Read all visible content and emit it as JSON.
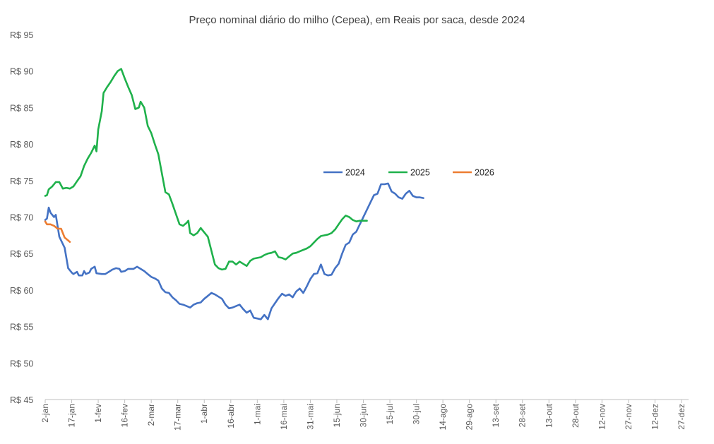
{
  "chart_data": {
    "type": "line",
    "title": "Preço nominal diário do milho (Cepea), em Reais por saca, desde 2024",
    "xlabel": "",
    "ylabel": "",
    "ylim": [
      45,
      95
    ],
    "y_ticks": [
      95,
      90,
      85,
      80,
      75,
      70,
      65,
      60,
      55,
      50,
      45
    ],
    "y_tick_labels": [
      "R$ 95",
      "R$ 90",
      "R$ 85",
      "R$ 80",
      "R$ 75",
      "R$ 70",
      "R$ 65",
      "R$ 60",
      "R$ 55",
      "R$ 50",
      "R$ 45"
    ],
    "x_day_range": [
      2,
      366
    ],
    "x_ticks": [
      2,
      17,
      32,
      47,
      62,
      77,
      92,
      107,
      122,
      137,
      152,
      167,
      182,
      197,
      212,
      227,
      242,
      257,
      272,
      287,
      302,
      317,
      332,
      347,
      362
    ],
    "x_tick_labels": [
      "2-jan",
      "17-jan",
      "1-fev",
      "16-fev",
      "2-mar",
      "17-mar",
      "1-abr",
      "16-abr",
      "1-mai",
      "16-mai",
      "31-mai",
      "15-jun",
      "30-jun",
      "15-jul",
      "30-jul",
      "14-ago",
      "29-ago",
      "13-set",
      "28-set",
      "13-out",
      "28-out",
      "12-nov",
      "27-nov",
      "12-dez",
      "27-dez"
    ],
    "grid": false,
    "legend_position": "center-right",
    "series": [
      {
        "name": "2024",
        "color": "#4472C4",
        "points": [
          [
            2,
            69.6
          ],
          [
            3,
            69.8
          ],
          [
            4,
            71.3
          ],
          [
            5,
            70.6
          ],
          [
            7,
            70.0
          ],
          [
            8,
            70.3
          ],
          [
            10,
            67.3
          ],
          [
            13,
            65.8
          ],
          [
            15,
            63.0
          ],
          [
            17,
            62.4
          ],
          [
            18,
            62.2
          ],
          [
            20,
            62.5
          ],
          [
            21,
            62.0
          ],
          [
            23,
            62.0
          ],
          [
            24,
            62.6
          ],
          [
            25,
            62.2
          ],
          [
            27,
            62.4
          ],
          [
            28,
            62.9
          ],
          [
            30,
            63.2
          ],
          [
            31,
            62.3
          ],
          [
            34,
            62.2
          ],
          [
            36,
            62.2
          ],
          [
            38,
            62.5
          ],
          [
            40,
            62.8
          ],
          [
            42,
            63.0
          ],
          [
            44,
            62.9
          ],
          [
            45,
            62.5
          ],
          [
            47,
            62.6
          ],
          [
            49,
            62.9
          ],
          [
            52,
            62.9
          ],
          [
            54,
            63.2
          ],
          [
            56,
            62.9
          ],
          [
            58,
            62.6
          ],
          [
            60,
            62.2
          ],
          [
            62,
            61.8
          ],
          [
            64,
            61.6
          ],
          [
            66,
            61.3
          ],
          [
            68,
            60.2
          ],
          [
            70,
            59.7
          ],
          [
            72,
            59.6
          ],
          [
            74,
            59.0
          ],
          [
            76,
            58.6
          ],
          [
            78,
            58.1
          ],
          [
            80,
            58.0
          ],
          [
            82,
            57.8
          ],
          [
            84,
            57.6
          ],
          [
            86,
            58.0
          ],
          [
            88,
            58.2
          ],
          [
            90,
            58.3
          ],
          [
            92,
            58.8
          ],
          [
            94,
            59.2
          ],
          [
            96,
            59.6
          ],
          [
            98,
            59.4
          ],
          [
            100,
            59.1
          ],
          [
            102,
            58.8
          ],
          [
            104,
            58.0
          ],
          [
            106,
            57.5
          ],
          [
            108,
            57.6
          ],
          [
            110,
            57.8
          ],
          [
            112,
            58.0
          ],
          [
            114,
            57.4
          ],
          [
            116,
            56.9
          ],
          [
            118,
            57.2
          ],
          [
            120,
            56.2
          ],
          [
            122,
            56.1
          ],
          [
            124,
            56.0
          ],
          [
            126,
            56.6
          ],
          [
            128,
            56.0
          ],
          [
            130,
            57.5
          ],
          [
            132,
            58.2
          ],
          [
            134,
            58.9
          ],
          [
            136,
            59.5
          ],
          [
            138,
            59.2
          ],
          [
            140,
            59.4
          ],
          [
            142,
            59.0
          ],
          [
            144,
            59.8
          ],
          [
            146,
            60.2
          ],
          [
            148,
            59.6
          ],
          [
            150,
            60.5
          ],
          [
            152,
            61.5
          ],
          [
            154,
            62.2
          ],
          [
            156,
            62.3
          ],
          [
            158,
            63.5
          ],
          [
            160,
            62.2
          ],
          [
            162,
            62.0
          ],
          [
            164,
            62.1
          ],
          [
            166,
            63.0
          ],
          [
            168,
            63.6
          ],
          [
            170,
            65.0
          ],
          [
            172,
            66.2
          ],
          [
            174,
            66.5
          ],
          [
            176,
            67.6
          ],
          [
            178,
            68.0
          ],
          [
            180,
            69.0
          ],
          [
            182,
            70.0
          ],
          [
            184,
            71.0
          ],
          [
            186,
            72.0
          ],
          [
            188,
            73.0
          ],
          [
            190,
            73.2
          ],
          [
            192,
            74.5
          ],
          [
            194,
            74.5
          ],
          [
            196,
            74.6
          ],
          [
            198,
            73.5
          ],
          [
            200,
            73.2
          ],
          [
            202,
            72.7
          ],
          [
            204,
            72.5
          ],
          [
            206,
            73.2
          ],
          [
            208,
            73.6
          ],
          [
            210,
            72.9
          ],
          [
            212,
            72.7
          ],
          [
            214,
            72.7
          ],
          [
            216,
            72.6
          ]
        ]
      },
      {
        "name": "2025",
        "color": "#1FB14B",
        "points": [
          [
            2,
            72.9
          ],
          [
            3,
            73.0
          ],
          [
            4,
            73.8
          ],
          [
            6,
            74.2
          ],
          [
            8,
            74.8
          ],
          [
            10,
            74.8
          ],
          [
            12,
            73.9
          ],
          [
            14,
            74.0
          ],
          [
            16,
            73.9
          ],
          [
            18,
            74.2
          ],
          [
            20,
            74.9
          ],
          [
            22,
            75.6
          ],
          [
            24,
            77.0
          ],
          [
            26,
            78.0
          ],
          [
            28,
            78.8
          ],
          [
            30,
            79.8
          ],
          [
            31,
            79.0
          ],
          [
            32,
            82.0
          ],
          [
            34,
            84.5
          ],
          [
            35,
            87.0
          ],
          [
            37,
            87.8
          ],
          [
            39,
            88.5
          ],
          [
            41,
            89.3
          ],
          [
            43,
            90.0
          ],
          [
            45,
            90.3
          ],
          [
            47,
            89.0
          ],
          [
            49,
            87.8
          ],
          [
            51,
            86.7
          ],
          [
            53,
            84.8
          ],
          [
            55,
            85.0
          ],
          [
            56,
            85.8
          ],
          [
            58,
            85.0
          ],
          [
            60,
            82.5
          ],
          [
            62,
            81.5
          ],
          [
            64,
            80.0
          ],
          [
            66,
            78.6
          ],
          [
            68,
            76.0
          ],
          [
            70,
            73.4
          ],
          [
            72,
            73.1
          ],
          [
            74,
            71.8
          ],
          [
            76,
            70.4
          ],
          [
            78,
            69.0
          ],
          [
            80,
            68.8
          ],
          [
            82,
            69.2
          ],
          [
            83,
            69.5
          ],
          [
            84,
            67.8
          ],
          [
            86,
            67.5
          ],
          [
            88,
            67.8
          ],
          [
            90,
            68.5
          ],
          [
            92,
            67.9
          ],
          [
            94,
            67.3
          ],
          [
            96,
            65.4
          ],
          [
            98,
            63.5
          ],
          [
            100,
            63.0
          ],
          [
            102,
            62.8
          ],
          [
            104,
            62.9
          ],
          [
            106,
            63.9
          ],
          [
            108,
            63.9
          ],
          [
            110,
            63.5
          ],
          [
            112,
            63.9
          ],
          [
            114,
            63.6
          ],
          [
            116,
            63.3
          ],
          [
            118,
            64.0
          ],
          [
            120,
            64.3
          ],
          [
            122,
            64.4
          ],
          [
            124,
            64.5
          ],
          [
            126,
            64.8
          ],
          [
            128,
            65.0
          ],
          [
            130,
            65.1
          ],
          [
            132,
            65.3
          ],
          [
            134,
            64.5
          ],
          [
            136,
            64.4
          ],
          [
            138,
            64.2
          ],
          [
            140,
            64.6
          ],
          [
            142,
            65.0
          ],
          [
            144,
            65.1
          ],
          [
            146,
            65.3
          ],
          [
            148,
            65.5
          ],
          [
            150,
            65.7
          ],
          [
            152,
            66.0
          ],
          [
            154,
            66.5
          ],
          [
            156,
            67.0
          ],
          [
            158,
            67.4
          ],
          [
            160,
            67.5
          ],
          [
            162,
            67.6
          ],
          [
            164,
            67.8
          ],
          [
            166,
            68.3
          ],
          [
            168,
            69.0
          ],
          [
            170,
            69.7
          ],
          [
            172,
            70.2
          ],
          [
            174,
            70.0
          ],
          [
            176,
            69.6
          ],
          [
            178,
            69.4
          ],
          [
            180,
            69.5
          ],
          [
            182,
            69.5
          ],
          [
            184,
            69.5
          ]
        ]
      },
      {
        "name": "2026",
        "color": "#ED7D31",
        "points": [
          [
            2,
            69.4
          ],
          [
            3,
            69.0
          ],
          [
            5,
            69.0
          ],
          [
            7,
            68.8
          ],
          [
            9,
            68.4
          ],
          [
            11,
            68.4
          ],
          [
            13,
            67.2
          ],
          [
            15,
            66.8
          ],
          [
            16,
            66.6
          ]
        ]
      }
    ]
  }
}
